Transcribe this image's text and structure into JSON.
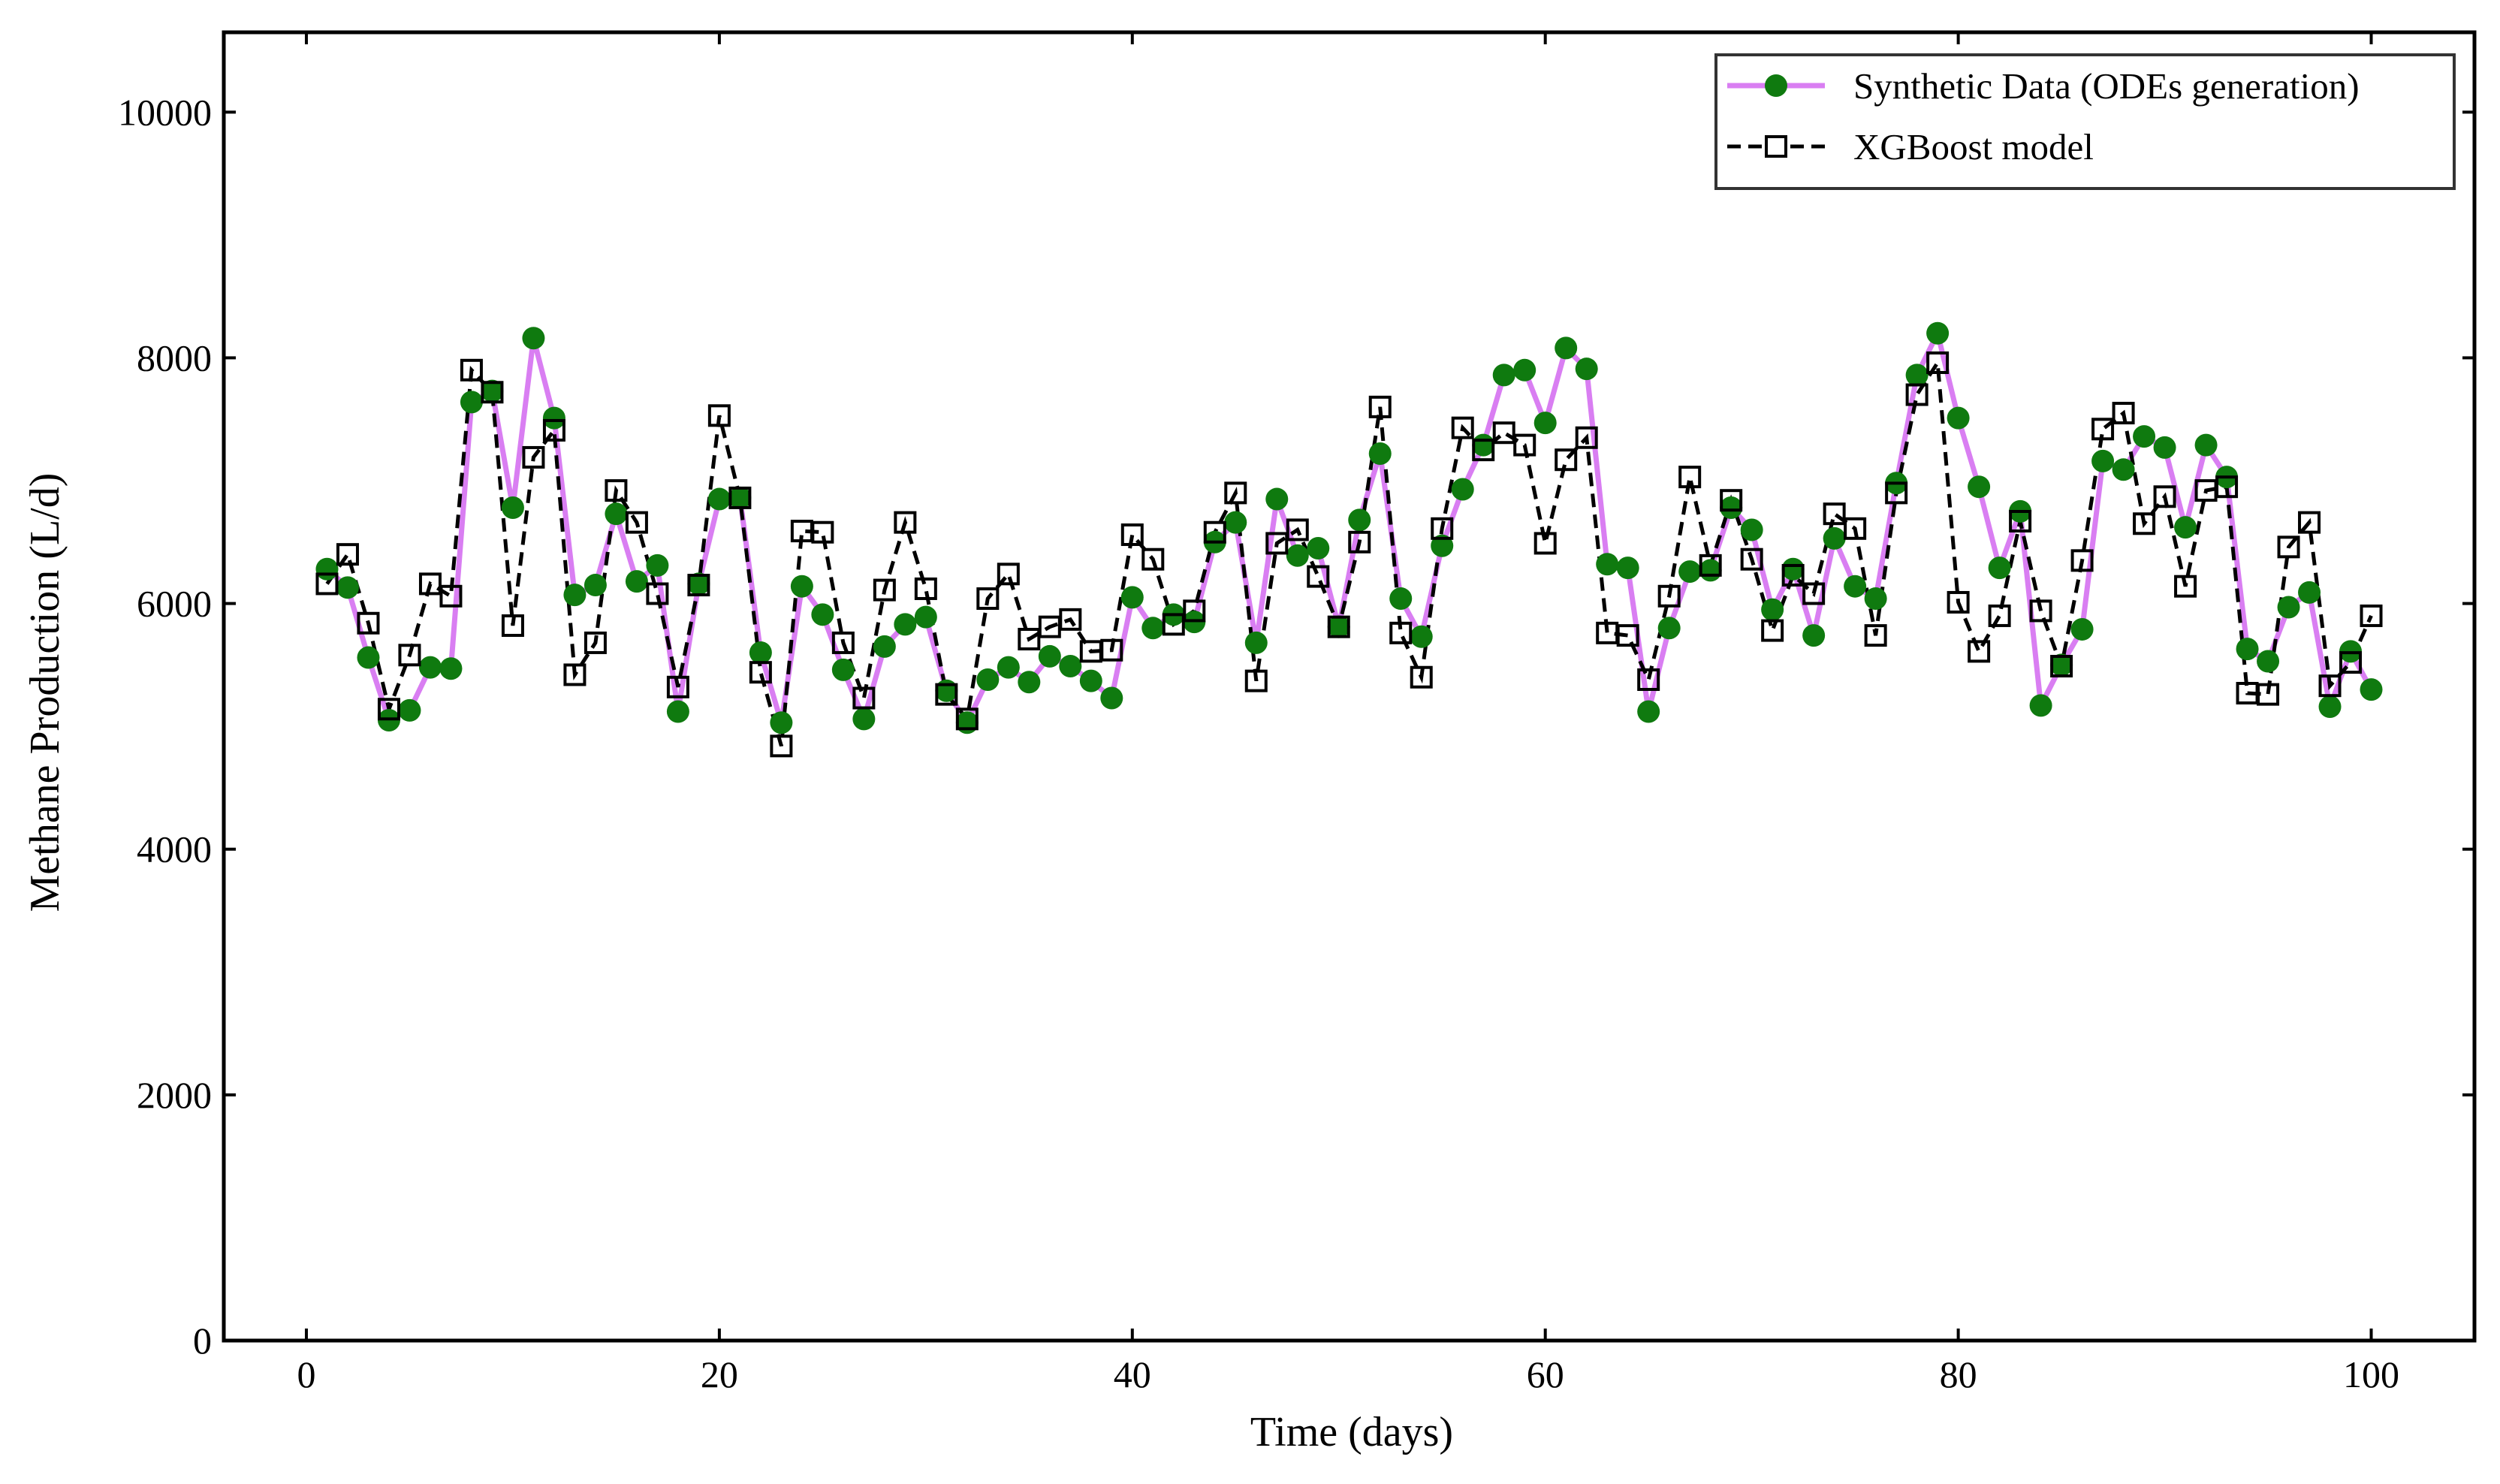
{
  "chart_data": {
    "type": "line",
    "xlabel": "Time (days)",
    "ylabel": "Methane Production (L/d)",
    "xlim": [
      -4,
      105
    ],
    "ylim": [
      0,
      10650
    ],
    "xticks": [
      0,
      20,
      40,
      60,
      80,
      100
    ],
    "yticks": [
      0,
      2000,
      4000,
      6000,
      8000,
      10000
    ],
    "grid": false,
    "legend_position": "top-right",
    "x": [
      1,
      2,
      3,
      4,
      5,
      6,
      7,
      8,
      9,
      10,
      11,
      12,
      13,
      14,
      15,
      16,
      17,
      18,
      19,
      20,
      21,
      22,
      23,
      24,
      25,
      26,
      27,
      28,
      29,
      30,
      31,
      32,
      33,
      34,
      35,
      36,
      37,
      38,
      39,
      40,
      41,
      42,
      43,
      44,
      45,
      46,
      47,
      48,
      49,
      50,
      51,
      52,
      53,
      54,
      55,
      56,
      57,
      58,
      59,
      60,
      61,
      62,
      63,
      64,
      65,
      66,
      67,
      68,
      69,
      70,
      71,
      72,
      73,
      74,
      75,
      76,
      77,
      78,
      79,
      80,
      81,
      82,
      83,
      84,
      85,
      86,
      87,
      88,
      89,
      90,
      91,
      92,
      93,
      94,
      95,
      96,
      97,
      98,
      99,
      100
    ],
    "series": [
      {
        "name": "Synthetic Data (ODEs generation)",
        "color": "#d97ef2",
        "marker_color": "#0f7a0f",
        "line_style": "solid",
        "marker": "circle",
        "values": [
          6280,
          6130,
          5560,
          5050,
          5130,
          5480,
          5470,
          7640,
          7730,
          6780,
          8160,
          7510,
          6070,
          6150,
          6730,
          6180,
          6310,
          5120,
          6160,
          6850,
          6860,
          5600,
          5030,
          6140,
          5910,
          5460,
          5060,
          5650,
          5830,
          5890,
          5290,
          5030,
          5380,
          5480,
          5360,
          5570,
          5490,
          5370,
          5230,
          6050,
          5800,
          5910,
          5850,
          6500,
          6660,
          5680,
          6850,
          6390,
          6450,
          5810,
          6680,
          7220,
          6040,
          5730,
          6470,
          6930,
          7290,
          7860,
          7900,
          7470,
          8080,
          7910,
          6320,
          6290,
          5120,
          5800,
          6260,
          6270,
          6780,
          6600,
          5950,
          6280,
          5740,
          6530,
          6140,
          6040,
          6980,
          7860,
          8200,
          7510,
          6950,
          6290,
          6750,
          5170,
          5500,
          5790,
          7160,
          7090,
          7360,
          7270,
          6620,
          7290,
          7030,
          5630,
          5530,
          5970,
          6090,
          5160,
          5610,
          5300
        ]
      },
      {
        "name": "XGBoost model",
        "color": "#000000",
        "line_style": "dashed",
        "marker": "square",
        "values": [
          6160,
          6400,
          5840,
          5140,
          5580,
          6160,
          6060,
          7900,
          7720,
          5820,
          7190,
          7410,
          5420,
          5680,
          6920,
          6660,
          6080,
          5320,
          6150,
          7530,
          6860,
          5440,
          4840,
          6590,
          6580,
          5680,
          5230,
          6110,
          6660,
          6120,
          5260,
          5060,
          6040,
          6240,
          5710,
          5810,
          5870,
          5610,
          5620,
          6560,
          6360,
          5830,
          5940,
          6580,
          6900,
          5370,
          6490,
          6600,
          6220,
          5810,
          6500,
          7600,
          5760,
          5400,
          6610,
          7430,
          7250,
          7390,
          7290,
          6490,
          7170,
          7350,
          5760,
          5740,
          5380,
          6060,
          7030,
          6310,
          6840,
          6360,
          5780,
          6230,
          6080,
          6730,
          6610,
          5740,
          6900,
          7700,
          7960,
          6010,
          5610,
          5900,
          6670,
          5940,
          5490,
          6350,
          7420,
          7550,
          6650,
          6870,
          6140,
          6920,
          6950,
          5270,
          5260,
          6460,
          6660,
          5330,
          5520,
          5900
        ]
      }
    ]
  }
}
